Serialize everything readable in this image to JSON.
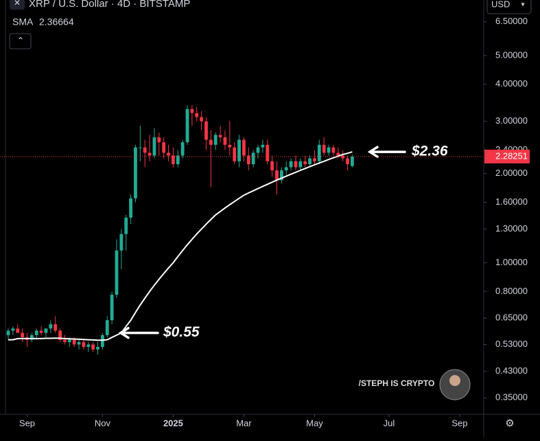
{
  "chart_data": {
    "type": "candlestick",
    "title": "XRP / U.S. Dollar · 4D · BITSTAMP",
    "currency": "USD",
    "watermark": "/STEPH IS CRYPTO",
    "log_scale": true,
    "up_color": "#22ab94",
    "down_color": "#f23645",
    "sma_color": "#ffffff",
    "ylim": [
      0.31,
      7.7
    ],
    "yticks": [
      {
        "value": 6.5,
        "label": "6.50000"
      },
      {
        "value": 5,
        "label": "5.00000"
      },
      {
        "value": 4,
        "label": "4.00000"
      },
      {
        "value": 3,
        "label": "3.00000"
      },
      {
        "value": 2.4,
        "label": "2.40000"
      },
      {
        "value": 2,
        "label": "2.00000"
      },
      {
        "value": 1.6,
        "label": "1.60000"
      },
      {
        "value": 1.3,
        "label": "1.30000"
      },
      {
        "value": 1,
        "label": "1.00000"
      },
      {
        "value": 0.8,
        "label": "0.80000"
      },
      {
        "value": 0.65,
        "label": "0.65000"
      },
      {
        "value": 0.53,
        "label": "0.53000"
      },
      {
        "value": 0.43,
        "label": "0.43000"
      },
      {
        "value": 0.35,
        "label": "0.35000"
      }
    ],
    "xlim": [
      -1.75,
      100.9
    ],
    "xticks": [
      {
        "value": 4,
        "label": "Sep"
      },
      {
        "value": 20,
        "label": "Nov"
      },
      {
        "value": 35,
        "label": "2025"
      },
      {
        "value": 50,
        "label": "Mar"
      },
      {
        "value": 65,
        "label": "May"
      },
      {
        "value": 80.8,
        "label": "Jul"
      },
      {
        "value": 95.8,
        "label": "Sep"
      }
    ],
    "candles": [
      [
        0.57,
        0.6,
        0.55,
        0.59
      ],
      [
        0.59,
        0.61,
        0.57,
        0.6
      ],
      [
        0.6,
        0.62,
        0.58,
        0.58
      ],
      [
        0.58,
        0.6,
        0.54,
        0.56
      ],
      [
        0.56,
        0.58,
        0.52,
        0.55
      ],
      [
        0.55,
        0.58,
        0.54,
        0.57
      ],
      [
        0.57,
        0.6,
        0.55,
        0.59
      ],
      [
        0.59,
        0.61,
        0.57,
        0.58
      ],
      [
        0.58,
        0.6,
        0.56,
        0.6
      ],
      [
        0.6,
        0.64,
        0.58,
        0.62
      ],
      [
        0.62,
        0.66,
        0.58,
        0.59
      ],
      [
        0.59,
        0.6,
        0.54,
        0.55
      ],
      [
        0.55,
        0.57,
        0.53,
        0.54
      ],
      [
        0.54,
        0.56,
        0.52,
        0.55
      ],
      [
        0.55,
        0.56,
        0.52,
        0.53
      ],
      [
        0.53,
        0.55,
        0.51,
        0.54
      ],
      [
        0.54,
        0.55,
        0.51,
        0.52
      ],
      [
        0.52,
        0.54,
        0.5,
        0.53
      ],
      [
        0.53,
        0.54,
        0.5,
        0.51
      ],
      [
        0.51,
        0.54,
        0.49,
        0.52
      ],
      [
        0.52,
        0.58,
        0.51,
        0.57
      ],
      [
        0.57,
        0.66,
        0.56,
        0.64
      ],
      [
        0.64,
        0.8,
        0.62,
        0.78
      ],
      [
        0.78,
        1.2,
        0.76,
        1.1
      ],
      [
        1.1,
        1.3,
        0.95,
        1.25
      ],
      [
        1.25,
        1.45,
        1.1,
        1.42
      ],
      [
        1.42,
        1.7,
        1.35,
        1.65
      ],
      [
        1.65,
        2.5,
        1.6,
        2.45
      ],
      [
        2.45,
        2.9,
        2.2,
        2.45
      ],
      [
        2.45,
        2.6,
        2.1,
        2.35
      ],
      [
        2.35,
        2.7,
        2.2,
        2.3
      ],
      [
        2.3,
        2.85,
        2.25,
        2.65
      ],
      [
        2.65,
        2.75,
        2.3,
        2.55
      ],
      [
        2.55,
        2.65,
        2.25,
        2.35
      ],
      [
        2.35,
        2.5,
        2.2,
        2.3
      ],
      [
        2.3,
        2.45,
        2.1,
        2.15
      ],
      [
        2.15,
        2.4,
        2.1,
        2.3
      ],
      [
        2.3,
        2.6,
        2.25,
        2.55
      ],
      [
        2.55,
        3.4,
        2.5,
        3.3
      ],
      [
        3.3,
        3.4,
        2.9,
        3.2
      ],
      [
        3.2,
        3.35,
        3.0,
        3.1
      ],
      [
        3.1,
        3.25,
        2.8,
        3.0
      ],
      [
        3.0,
        3.1,
        2.4,
        2.6
      ],
      [
        2.6,
        2.8,
        1.8,
        2.5
      ],
      [
        2.5,
        2.75,
        2.4,
        2.7
      ],
      [
        2.7,
        2.9,
        2.55,
        2.65
      ],
      [
        2.65,
        2.8,
        2.4,
        2.5
      ],
      [
        2.5,
        3.0,
        2.3,
        2.45
      ],
      [
        2.45,
        2.55,
        2.15,
        2.2
      ],
      [
        2.2,
        2.7,
        2.1,
        2.6
      ],
      [
        2.6,
        2.65,
        2.2,
        2.3
      ],
      [
        2.3,
        2.45,
        2.05,
        2.15
      ],
      [
        2.15,
        2.4,
        2.1,
        2.35
      ],
      [
        2.35,
        2.5,
        2.25,
        2.45
      ],
      [
        2.45,
        2.6,
        2.35,
        2.5
      ],
      [
        2.5,
        2.6,
        2.15,
        2.2
      ],
      [
        2.2,
        2.3,
        1.95,
        2.05
      ],
      [
        2.05,
        2.2,
        1.7,
        1.9
      ],
      [
        1.9,
        2.1,
        1.85,
        2.05
      ],
      [
        2.05,
        2.2,
        1.98,
        2.1
      ],
      [
        2.1,
        2.25,
        2.05,
        2.2
      ],
      [
        2.2,
        2.3,
        2.05,
        2.1
      ],
      [
        2.1,
        2.25,
        2.05,
        2.2
      ],
      [
        2.2,
        2.3,
        2.1,
        2.15
      ],
      [
        2.15,
        2.3,
        2.1,
        2.25
      ],
      [
        2.25,
        2.4,
        2.15,
        2.2
      ],
      [
        2.2,
        2.6,
        2.15,
        2.5
      ],
      [
        2.5,
        2.65,
        2.3,
        2.35
      ],
      [
        2.35,
        2.5,
        2.3,
        2.45
      ],
      [
        2.45,
        2.5,
        2.3,
        2.35
      ],
      [
        2.35,
        2.45,
        2.25,
        2.3
      ],
      [
        2.3,
        2.4,
        2.2,
        2.25
      ],
      [
        2.25,
        2.3,
        2.05,
        2.15
      ],
      [
        2.12,
        2.32,
        2.1,
        2.28251
      ]
    ],
    "sma": {
      "name": "SMA",
      "values": [
        0.55,
        0.55,
        0.555,
        0.555,
        0.555,
        0.555,
        0.555,
        0.555,
        0.556,
        0.556,
        0.557,
        0.556,
        0.555,
        0.554,
        0.553,
        0.552,
        0.551,
        0.55,
        0.549,
        0.548,
        0.548,
        0.55,
        0.56,
        0.57,
        0.58,
        0.61,
        0.64,
        0.68,
        0.72,
        0.76,
        0.8,
        0.84,
        0.88,
        0.92,
        0.96,
        1.0,
        1.05,
        1.1,
        1.15,
        1.2,
        1.25,
        1.3,
        1.35,
        1.4,
        1.45,
        1.49,
        1.53,
        1.57,
        1.61,
        1.65,
        1.69,
        1.72,
        1.75,
        1.78,
        1.81,
        1.84,
        1.87,
        1.9,
        1.93,
        1.96,
        1.99,
        2.02,
        2.05,
        2.08,
        2.11,
        2.14,
        2.17,
        2.2,
        2.23,
        2.26,
        2.29,
        2.32,
        2.34,
        2.36664
      ]
    },
    "annotations": [
      {
        "text": "$2.36"
      },
      {
        "text": "$0.55"
      }
    ]
  }
}
